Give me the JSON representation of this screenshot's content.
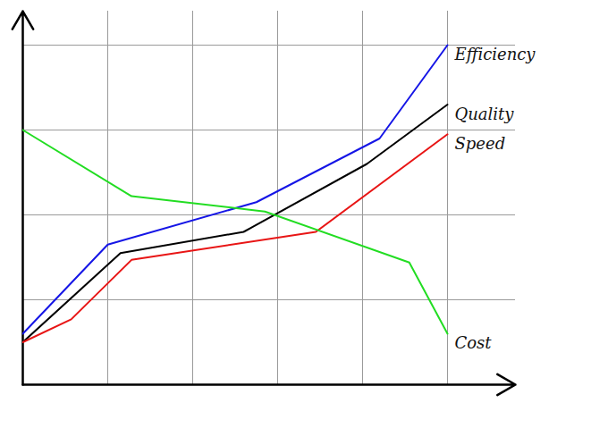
{
  "chart_data": {
    "type": "line",
    "xlim": [
      0,
      5.8
    ],
    "ylim": [
      0,
      4.4
    ],
    "xticks": [
      1,
      2,
      3,
      4,
      5
    ],
    "yticks": [
      1,
      2,
      3,
      4
    ],
    "grid": true,
    "tick_labels": false,
    "series": [
      {
        "name": "Efficiency",
        "color": "#1515e6",
        "x": [
          0,
          1,
          2.75,
          4.2,
          5
        ],
        "values": [
          0.6,
          1.65,
          2.15,
          2.9,
          4.0
        ]
      },
      {
        "name": "Quality",
        "color": "#000000",
        "x": [
          0,
          1.15,
          2.6,
          4.05,
          5
        ],
        "values": [
          0.5,
          1.55,
          1.8,
          2.6,
          3.3
        ]
      },
      {
        "name": "Speed",
        "color": "#e81515",
        "x": [
          0,
          0.57,
          1.28,
          3.45,
          5
        ],
        "values": [
          0.5,
          0.77,
          1.47,
          1.8,
          2.95
        ]
      },
      {
        "name": "Cost",
        "color": "#22dd22",
        "x": [
          0,
          1.28,
          2.85,
          4.55,
          5
        ],
        "values": [
          3.0,
          2.22,
          2.04,
          1.44,
          0.6
        ]
      }
    ]
  }
}
